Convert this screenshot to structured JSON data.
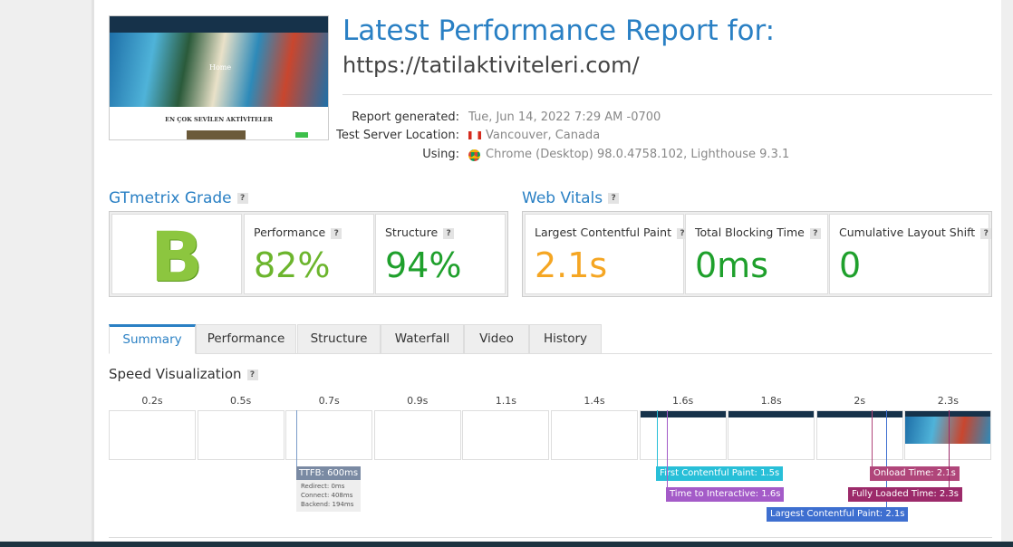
{
  "header": {
    "title": "Latest Performance Report for:",
    "url": "https://tatilaktiviteleri.com/",
    "details": [
      {
        "label": "Report generated:",
        "value": "Tue, Jun 14, 2022 7:29 AM -0700"
      },
      {
        "label": "Test Server Location:",
        "value": "Vancouver, Canada"
      },
      {
        "label": "Using:",
        "value": "Chrome (Desktop) 98.0.4758.102, Lighthouse 9.3.1"
      }
    ]
  },
  "thumbnail": {
    "heading": "EN ÇOK SEVİLEN AKTİVİTELER",
    "banner": "Home"
  },
  "help": "?",
  "grade": {
    "title": "GTmetrix Grade",
    "grade": "B",
    "metrics": [
      {
        "label": "Performance",
        "value": "82%"
      },
      {
        "label": "Structure",
        "value": "94%"
      }
    ]
  },
  "vitals": {
    "title": "Web Vitals",
    "metrics": [
      {
        "label": "Largest Contentful Paint",
        "value": "2.1s"
      },
      {
        "label": "Total Blocking Time",
        "value": "0ms"
      },
      {
        "label": "Cumulative Layout Shift",
        "value": "0"
      }
    ]
  },
  "tabs": [
    "Summary",
    "Performance",
    "Structure",
    "Waterfall",
    "Video",
    "History"
  ],
  "speed": {
    "title": "Speed Visualization",
    "frames": [
      "0.2s",
      "0.5s",
      "0.7s",
      "0.9s",
      "1.1s",
      "1.4s",
      "1.6s",
      "1.8s",
      "2s",
      "2.3s"
    ],
    "ttfb": {
      "label": "TTFB: 600ms",
      "details": [
        "Redirect: 0ms",
        "Connect: 408ms",
        "Backend: 194ms"
      ]
    },
    "markers": [
      "First Contentful Paint: 1.5s",
      "Time to Interactive: 1.6s",
      "Largest Contentful Paint: 2.1s",
      "Onload Time: 2.1s",
      "Fully Loaded Time: 2.3s"
    ]
  }
}
